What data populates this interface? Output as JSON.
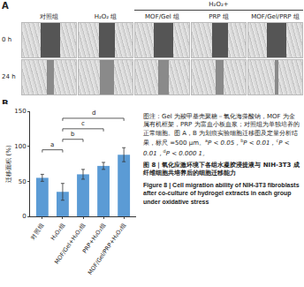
{
  "panel_a": {
    "label": "A",
    "group_header": "H₂O₂+",
    "columns": [
      "对照组",
      "H₂O₂ 组",
      "MOF/Gel 组",
      "PRP 组",
      "MOF/Gel/PRP 组"
    ],
    "rows": [
      "0 h",
      "24 h"
    ]
  },
  "chart_data": {
    "type": "bar",
    "panel_label": "B",
    "y_label": "迁移面积 (%)",
    "categories": [
      "对照组",
      "H₂O₂组",
      "MOF/Gel+H₂O₂组",
      "PRP+H₂O₂组",
      "MOF/Gel/PRP+H₂O₂组"
    ],
    "values": [
      55,
      35,
      60,
      72,
      88
    ],
    "errors": [
      5,
      12,
      7,
      5,
      10
    ],
    "color": "#5b9bd5",
    "ylim": [
      0,
      150
    ],
    "yticks": [
      0,
      50,
      100,
      150
    ],
    "brackets": [
      {
        "from": "对照组",
        "to": "H₂O₂组",
        "y": 95,
        "label": "a"
      },
      {
        "from": "H₂O₂组",
        "to": "MOF/Gel+H₂O₂组",
        "y": 110,
        "label": "b"
      },
      {
        "from": "H₂O₂组",
        "to": "PRP+H₂O₂组",
        "y": 125,
        "label": "c"
      },
      {
        "from": "H₂O₂组",
        "to": "MOF/Gel/PRP+H₂O₂组",
        "y": 140,
        "label": "d"
      }
    ]
  },
  "caption": {
    "note": "图注：Gel 为羧甲基壳聚糖－氧化海藻酸钠，MOF 为金属有机框架，PRP 为富血小板血浆；对照组为单独培养的正常细胞。图 A，B 为划痕实验细胞迁移图及定量分析结果，标尺 =500 μm。",
    "p_values": [
      {
        "letter": "a",
        "text": "P < 0.05，"
      },
      {
        "letter": "b",
        "text": "P < 0.01，"
      },
      {
        "letter": "c",
        "text": "P < 0.01，"
      },
      {
        "letter": "d",
        "text": "P < 0.000 1。"
      }
    ],
    "title_cn": "图 8｜氧化应激环境下各组水凝胶浸提液与 NIH-3T3 成纤维细胞共培养后的细胞迁移能力",
    "title_en": "Figure 8 | Cell migration ability of NIH-3T3 fibroblasts after co-culture of hydrogel extracts in each group under oxidative stress"
  }
}
